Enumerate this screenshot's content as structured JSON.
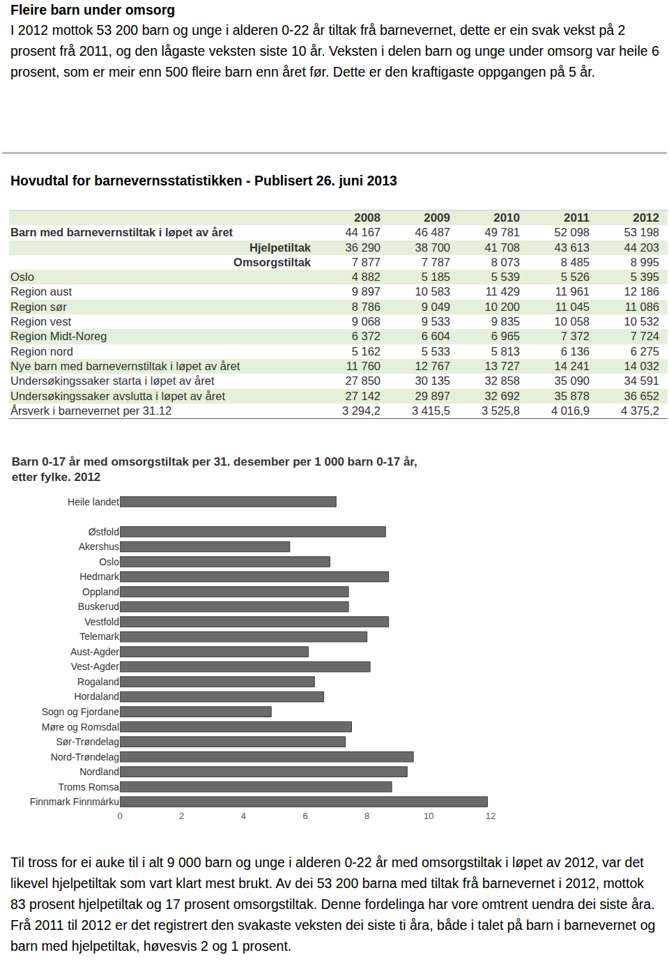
{
  "heading": "Fleire barn under omsorg",
  "intro": "I 2012 mottok 53 200 barn og unge i alderen 0-22 år tiltak frå barnevernet, dette er ein svak vekst på 2 prosent frå 2011, og den lågaste veksten siste 10 år. Veksten i delen barn og unge under omsorg var heile 6 prosent, som er meir enn 500 fleire barn enn året før. Dette er den kraftigaste oppgangen på 5 år.",
  "table": {
    "title": "Hovudtal for barnevernsstatistikken - Publisert 26. juni 2013",
    "header": [
      "2008",
      "2009",
      "2010",
      "2011",
      "2012"
    ],
    "rows": [
      [
        "Barn med barnevernstiltak i løpet av året",
        "44 167",
        "46 487",
        "49 781",
        "52 098",
        "53 198"
      ],
      [
        "Hjelpetiltak",
        "36 290",
        "38 700",
        "41 708",
        "43 613",
        "44 203"
      ],
      [
        "Omsorgstiltak",
        "7 877",
        "7 787",
        "8 073",
        "8 485",
        "8 995"
      ],
      [
        "Oslo",
        "4 882",
        "5 185",
        "5 539",
        "5 526",
        "5 395"
      ],
      [
        "Region aust",
        "9 897",
        "10 583",
        "11 429",
        "11 961",
        "12 186"
      ],
      [
        "Region sør",
        "8 786",
        "9 049",
        "10 200",
        "11 045",
        "11 086"
      ],
      [
        "Region vest",
        "9 068",
        "9 533",
        "9 835",
        "10 058",
        "10 532"
      ],
      [
        "Region Midt-Noreg",
        "6 372",
        "6 604",
        "6 965",
        "7 372",
        "7 724"
      ],
      [
        "Region nord",
        "5 162",
        "5 533",
        "5 813",
        "6 136",
        "6 275"
      ],
      [
        "Nye barn med barnevernstiltak i løpet av året",
        "11 760",
        "12 767",
        "13 727",
        "14 241",
        "14 032"
      ],
      [
        "Undersøkingssaker starta i løpet av året",
        "27 850",
        "30 135",
        "32 858",
        "35 090",
        "34 591"
      ],
      [
        "Undersøkingssaker avslutta i løpet av året",
        "27 142",
        "29 897",
        "32 692",
        "35 878",
        "36 652"
      ],
      [
        "Årsverk i barnevernet per 31.12",
        "3 294,2",
        "3 415,5",
        "3 525,8",
        "4 016,9",
        "4 375,2"
      ]
    ]
  },
  "chart_data": {
    "type": "bar",
    "orientation": "horizontal",
    "title": "Barn 0-17 år med omsorgstiltak per 31. desember per 1 000 barn 0-17 år,\netter fylke. 2012",
    "categories": [
      "Heile landet",
      null,
      "Østfold",
      "Akershus",
      "Oslo",
      "Hedmark",
      "Oppland",
      "Buskerud",
      "Vestfold",
      "Telemark",
      "Aust-Agder",
      "Vest-Agder",
      "Rogaland",
      "Hordaland",
      "Sogn og Fjordane",
      "Møre og Romsdal",
      "Sør-Trøndelag",
      "Nord-Trøndelag",
      "Nordland",
      "Troms Romsa",
      "Finnmark Finnmárku"
    ],
    "values": [
      7.0,
      null,
      8.6,
      5.5,
      6.8,
      8.7,
      7.4,
      7.4,
      8.7,
      8.0,
      6.1,
      8.1,
      6.3,
      6.6,
      4.9,
      7.5,
      7.3,
      9.5,
      9.3,
      8.8,
      11.9
    ],
    "color": "#6a6a6a",
    "xlim": [
      0,
      12
    ],
    "xticks": [
      0,
      2,
      4,
      6,
      8,
      10,
      12
    ],
    "grid": false
  },
  "outro": "Til tross for ei auke til i alt 9 000 barn og unge i alderen 0-22 år med omsorgstiltak i løpet av 2012, var det likevel hjelpetiltak som vart klart mest brukt. Av dei 53 200 barna med tiltak frå barnevernet i 2012, mottok 83 prosent hjelpetiltak og 17 prosent omsorgstiltak. Denne fordelinga har vore omtrent uendra dei siste åra. Frå 2011 til 2012 er det registrert den svakaste veksten dei siste ti åra, både i talet på barn i barnevernet og barn med hjelpetiltak, høvesvis 2 og 1 prosent."
}
